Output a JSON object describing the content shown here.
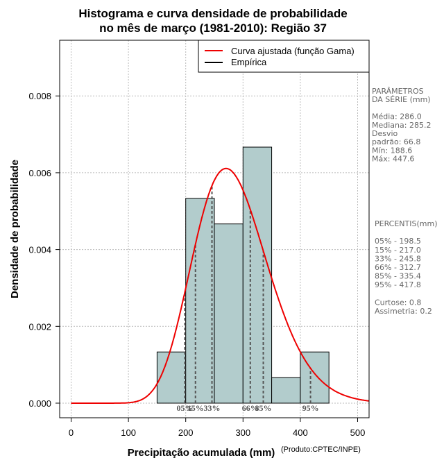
{
  "chart_data": {
    "type": "bar",
    "title_lines": [
      "Histograma e curva densidade de probabilidade",
      "no mês de março (1981-2010): Região 37"
    ],
    "xlabel": "Precipitação acumulada (mm)",
    "ylabel": "Densidade de probabilidade",
    "credit": "(Produto:CPTEC/INPE)",
    "xlim": [
      -20,
      520
    ],
    "ylim": [
      -0.00038,
      0.00945
    ],
    "x_ticks": [
      0,
      100,
      200,
      300,
      400,
      500
    ],
    "y_ticks": [
      0.0,
      0.002,
      0.004,
      0.006,
      0.008
    ],
    "y_tick_labels": [
      "0.000",
      "0.002",
      "0.004",
      "0.006",
      "0.008"
    ],
    "grid": true,
    "bars": [
      {
        "x0": 150,
        "x1": 200,
        "density": 0.001333
      },
      {
        "x0": 200,
        "x1": 250,
        "density": 0.005333
      },
      {
        "x0": 250,
        "x1": 300,
        "density": 0.004667
      },
      {
        "x0": 300,
        "x1": 350,
        "density": 0.006667
      },
      {
        "x0": 350,
        "x1": 400,
        "density": 0.000667
      },
      {
        "x0": 400,
        "x1": 450,
        "density": 0.001333
      }
    ],
    "gamma_fit": {
      "shape": 18.32,
      "scale": 15.61
    },
    "legend": {
      "position": "top-right",
      "entries": [
        {
          "label": "Curva ajustada (função Gama)",
          "color": "#ee0000"
        },
        {
          "label": "Empírica",
          "color": "#000000"
        }
      ]
    },
    "percentiles": [
      {
        "label": "05%",
        "value": 198.5
      },
      {
        "label": "15%",
        "value": 217.0
      },
      {
        "label": "33%",
        "value": 245.8
      },
      {
        "label": "66%",
        "value": 312.7
      },
      {
        "label": "85%",
        "value": 335.4
      },
      {
        "label": "95%",
        "value": 417.8
      }
    ],
    "colors": {
      "bar_fill": "#b2cccc",
      "bar_stroke": "#000000",
      "curve": "#ee0000",
      "grid": "#bbbbbb",
      "percentile_line": "#555555"
    }
  },
  "side_panel": {
    "params_lines": [
      "PARÂMETROS",
      " DA SÉRIE (mm)",
      "",
      "Média:  286.0",
      "Mediana:  285.2",
      "Desvio",
      "padrão:  66.8",
      "Mín:  188.6",
      "Máx:  447.6"
    ],
    "pct_lines": [
      " PERCENTIS(mm)",
      "",
      "05% -  198.5",
      "15% -  217.0",
      "33% -  245.8",
      "66% -  312.7",
      "85% -  335.4",
      "95% -  417.8",
      "",
      "Curtose:  0.8",
      "Assimetria:  0.2"
    ]
  }
}
